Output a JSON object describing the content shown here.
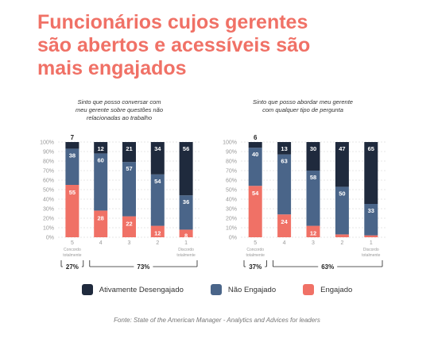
{
  "title_lines": [
    "Funcionários cujos gerentes",
    "são abertos e acessíveis são",
    "mais engajados"
  ],
  "colors": {
    "title": "#f07166",
    "ativamente": "#1f2a3d",
    "nao_engajado": "#4a6589",
    "engajado": "#f07166"
  },
  "chart_data": [
    {
      "type": "bar",
      "stacked": true,
      "title_lines": [
        "Sinto que posso conversar com",
        "meu gerente sobre questões não",
        "relacionadas ao trabalho"
      ],
      "categories": [
        "5",
        "4",
        "3",
        "2",
        "1"
      ],
      "category_sublabels": [
        "Concordo\ntotalmente",
        "",
        "",
        "",
        "Discordo\ntotalmente"
      ],
      "yticks": [
        "100%",
        "90%",
        "80%",
        "70%",
        "60%",
        "50%",
        "40%",
        "30%",
        "20%",
        "10%",
        "0%"
      ],
      "ylim": [
        0,
        100
      ],
      "series": [
        {
          "name": "Engajado",
          "values": [
            55,
            28,
            22,
            12,
            8
          ]
        },
        {
          "name": "Não Engajado",
          "values": [
            38,
            60,
            57,
            54,
            36
          ]
        },
        {
          "name": "Ativamente Desengajado",
          "values": [
            7,
            12,
            21,
            34,
            56
          ]
        }
      ],
      "groups": [
        {
          "label": "27%",
          "from": 0,
          "to": 0
        },
        {
          "label": "73%",
          "from": 1,
          "to": 4
        }
      ]
    },
    {
      "type": "bar",
      "stacked": true,
      "title_lines": [
        "Sinto que posso abordar meu gerente",
        "com qualquer tipo de pergunta"
      ],
      "categories": [
        "5",
        "4",
        "3",
        "2",
        "1"
      ],
      "category_sublabels": [
        "Concordo\ntotalmente",
        "",
        "",
        "",
        "Discordo\ntotalmente"
      ],
      "yticks": [
        "100%",
        "90%",
        "80%",
        "70%",
        "60%",
        "50%",
        "40%",
        "30%",
        "20%",
        "10%",
        "0%"
      ],
      "ylim": [
        0,
        100
      ],
      "series": [
        {
          "name": "Engajado",
          "values": [
            54,
            24,
            12,
            3,
            2
          ]
        },
        {
          "name": "Não Engajado",
          "values": [
            40,
            63,
            58,
            50,
            33
          ]
        },
        {
          "name": "Ativamente Desengajado",
          "values": [
            6,
            13,
            30,
            47,
            65
          ]
        }
      ],
      "groups": [
        {
          "label": "37%",
          "from": 0,
          "to": 0
        },
        {
          "label": "63%",
          "from": 1,
          "to": 4
        }
      ]
    }
  ],
  "legend": [
    {
      "label": "Ativamente Desengajado",
      "color": "#1f2a3d"
    },
    {
      "label": "Não Engajado",
      "color": "#4a6589"
    },
    {
      "label": "Engajado",
      "color": "#f07166"
    }
  ],
  "source": "Fonte: State of the American Manager - Analytics and Advices for leaders"
}
